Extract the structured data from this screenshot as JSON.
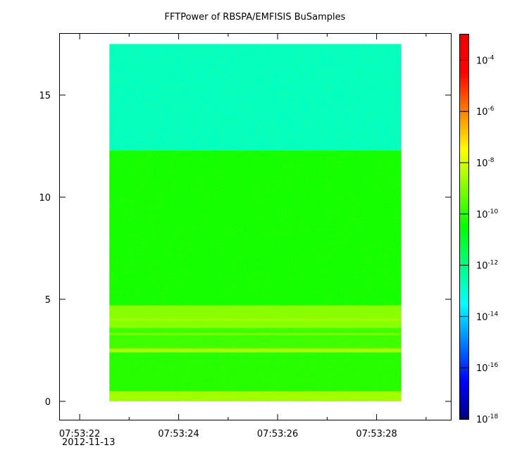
{
  "chart_data": {
    "type": "heatmap",
    "title": "FFTPower of RBSPA/EMFISIS  BuSamples",
    "xlabel": "",
    "ylabel": "",
    "x_axis": {
      "range": [
        "07:53:21.6",
        "07:53:29.5"
      ],
      "ticks": [
        "07:53:22",
        "07:53:24",
        "07:53:26",
        "07:53:28"
      ],
      "first_tick_date": "2012-11-13"
    },
    "y_axis": {
      "range": [
        -0.9,
        18.0
      ],
      "ticks": [
        0,
        5,
        10,
        15
      ]
    },
    "colorbar": {
      "scale": "log",
      "range": [
        1e-18,
        0.001
      ],
      "ticks": [
        "10-4",
        "10-6",
        "10-8",
        "10-10",
        "10-12",
        "10-14",
        "10-16",
        "10-18"
      ],
      "colormap": [
        "#00007f",
        "#0000ff",
        "#007fff",
        "#00ffff",
        "#00ff7f",
        "#00ff00",
        "#7fff00",
        "#ffff00",
        "#ff7f00",
        "#ff0000",
        "#ef0000"
      ]
    },
    "data_extent": {
      "x": [
        "07:53:22.6",
        "07:53:28.5"
      ],
      "y": [
        0.0,
        17.5
      ]
    },
    "bands": [
      {
        "y": [
          12.3,
          17.5
        ],
        "level_log10": -12.8
      },
      {
        "y": [
          4.7,
          12.3
        ],
        "level_log10": -10.3
      },
      {
        "y": [
          3.6,
          4.7
        ],
        "level_log10": -8.9
      },
      {
        "y": [
          2.6,
          3.6
        ],
        "level_log10": -9.8
      },
      {
        "y": [
          2.4,
          2.6
        ],
        "level_log10": -8.7
      },
      {
        "y": [
          0.5,
          2.4
        ],
        "level_log10": -10.1
      },
      {
        "y": [
          0.0,
          0.5
        ],
        "level_log10": -8.6
      }
    ],
    "lines": [
      {
        "y": 3.3,
        "level_log10": -8.9
      },
      {
        "y": 2.5,
        "level_log10": -8.4
      },
      {
        "y": 4.0,
        "level_log10": -8.6
      }
    ],
    "grid": false,
    "legend": "none"
  }
}
